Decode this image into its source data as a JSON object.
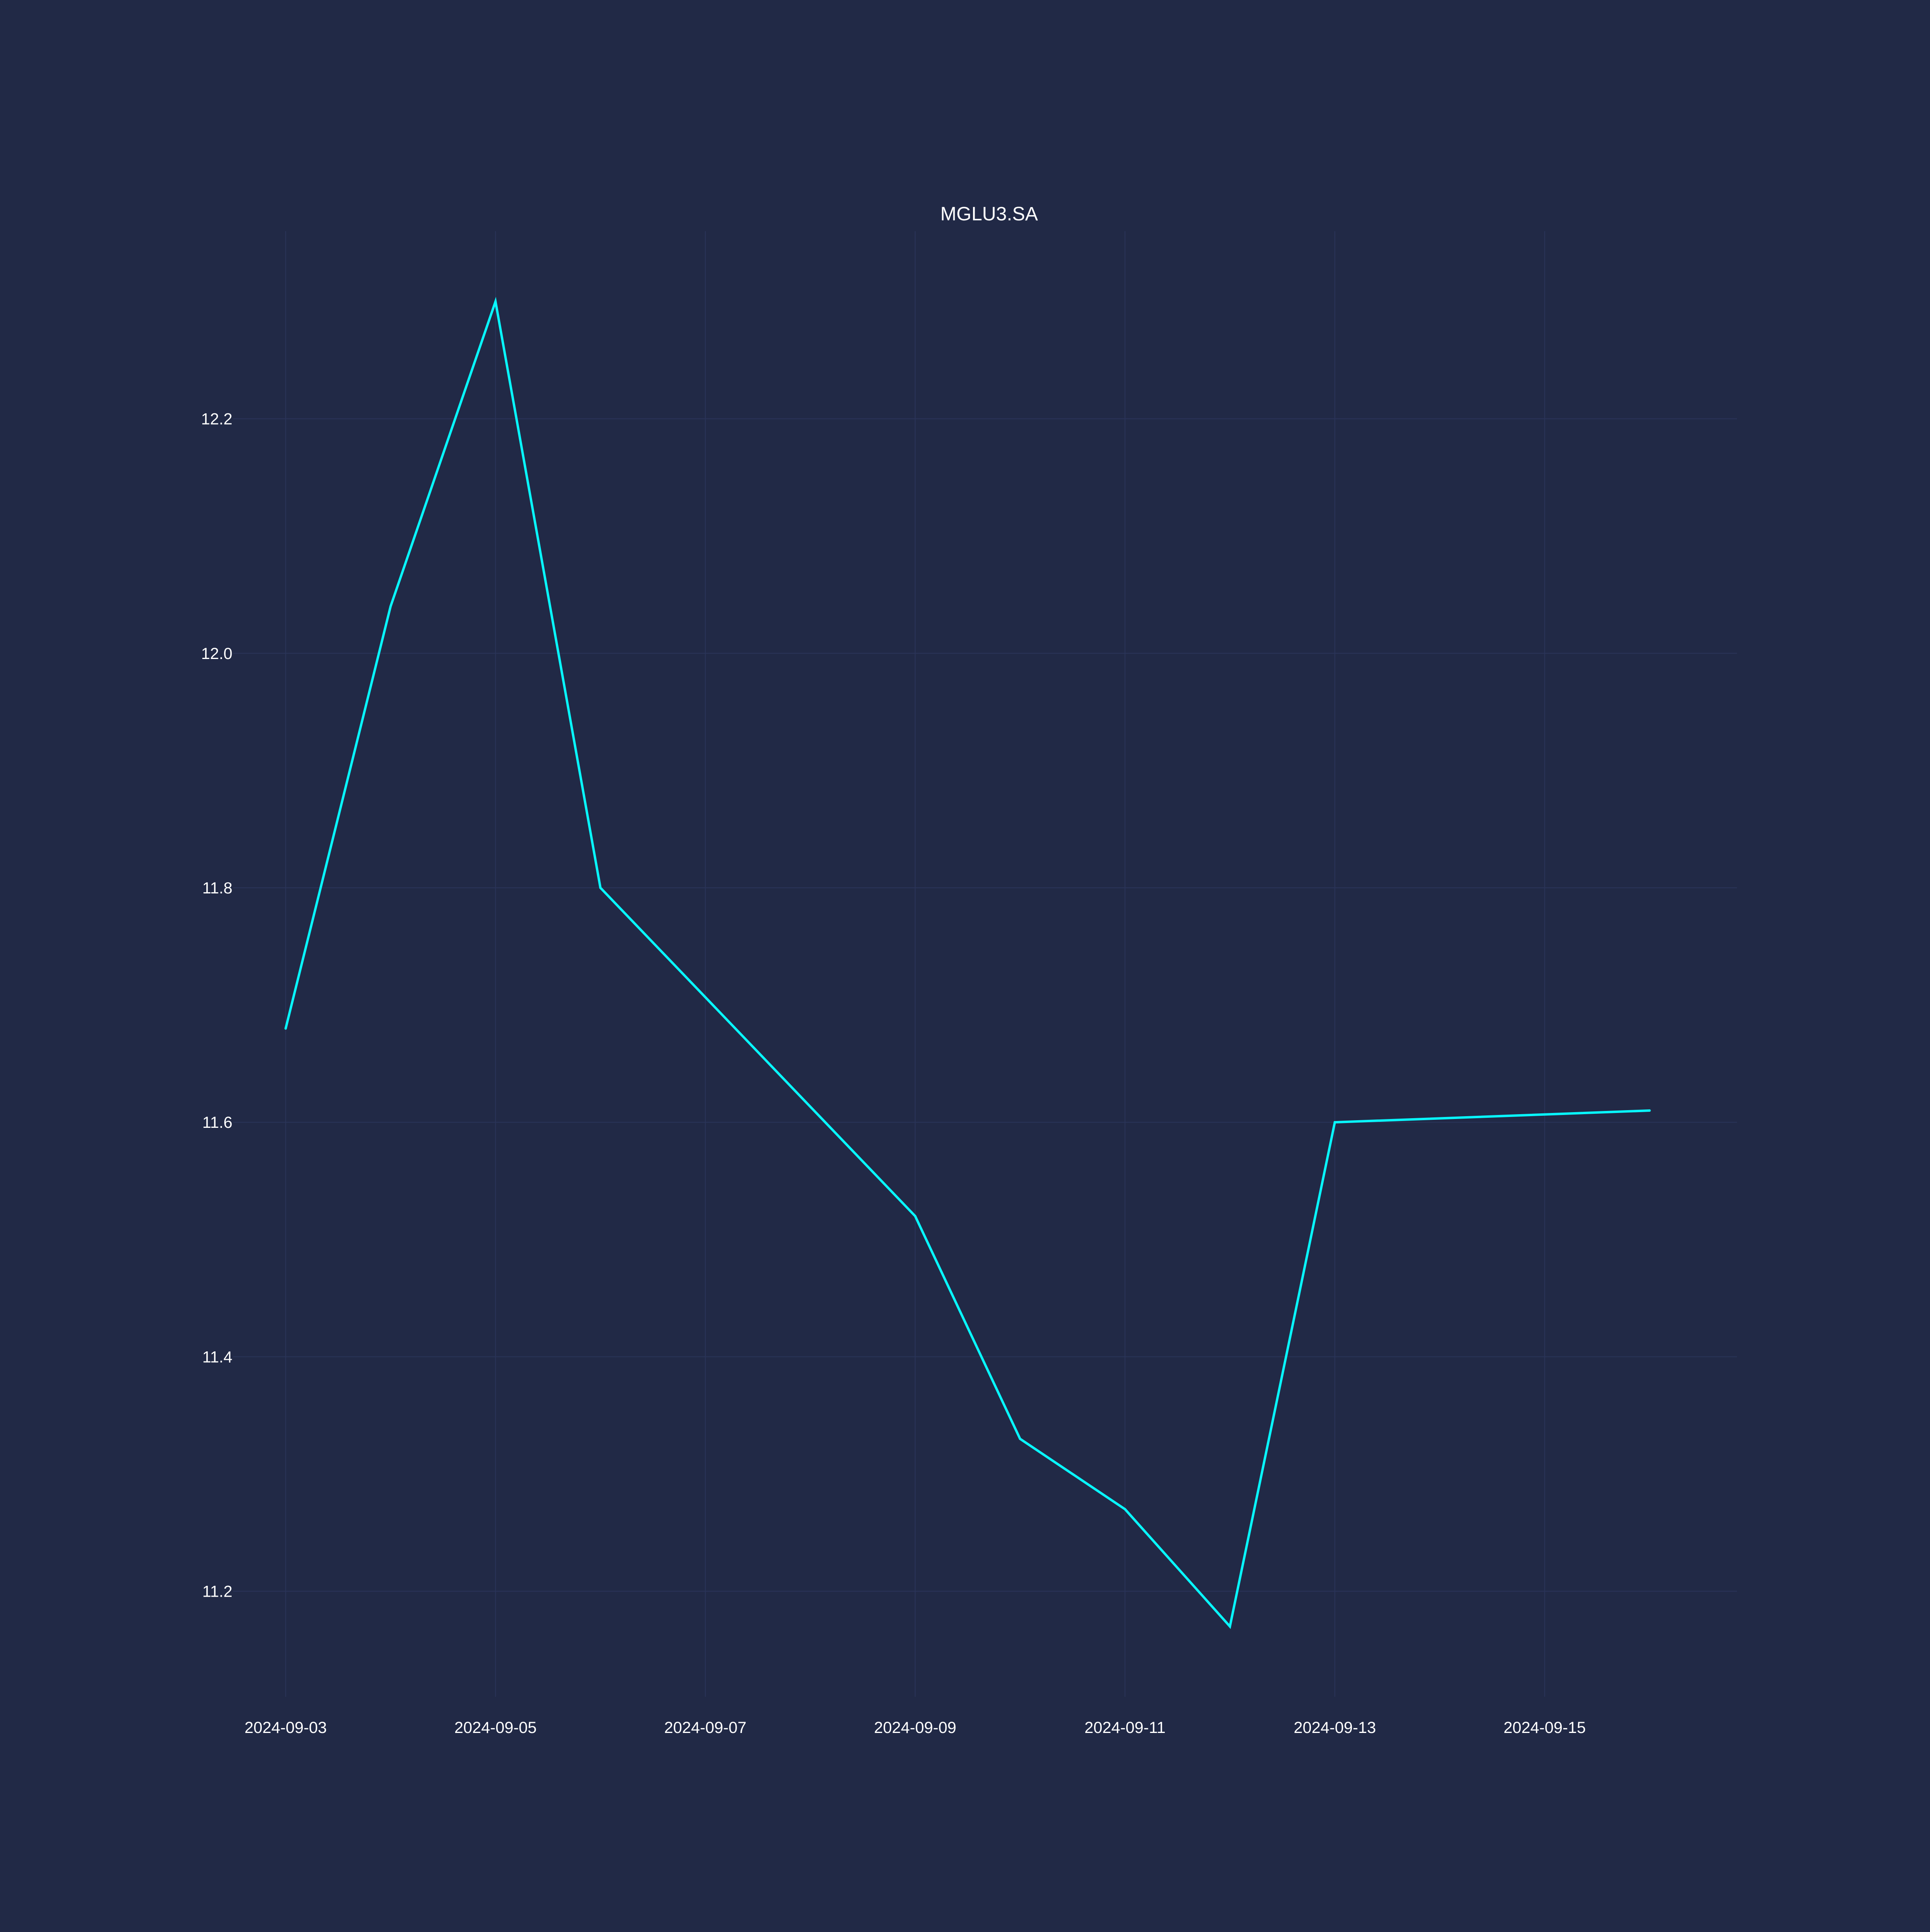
{
  "colors": {
    "background": "#212946",
    "grid": "#2A3459",
    "text": "#FFFFFF",
    "line": "#08F7FE"
  },
  "chart_data": {
    "type": "line",
    "title": "MGLU3.SA",
    "xlabel": "",
    "ylabel": "",
    "grid": true,
    "legend": "none",
    "x_type": "date",
    "xlim": [
      "2024-09-02T12:00",
      "2024-09-16T20:00"
    ],
    "ylim": [
      11.11,
      12.36
    ],
    "x_ticks": [
      "2024-09-03",
      "2024-09-05",
      "2024-09-07",
      "2024-09-09",
      "2024-09-11",
      "2024-09-13",
      "2024-09-15"
    ],
    "y_ticks": [
      "11.2",
      "11.4",
      "11.6",
      "11.8",
      "12.0",
      "12.2"
    ],
    "series": [
      {
        "color": "#08F7FE",
        "x": [
          "2024-09-03",
          "2024-09-04",
          "2024-09-05",
          "2024-09-06",
          "2024-09-09",
          "2024-09-10",
          "2024-09-11",
          "2024-09-12",
          "2024-09-13",
          "2024-09-16"
        ],
        "y": [
          11.68,
          12.04,
          12.3,
          11.8,
          11.52,
          11.33,
          11.27,
          11.17,
          11.6,
          11.61
        ]
      }
    ]
  }
}
